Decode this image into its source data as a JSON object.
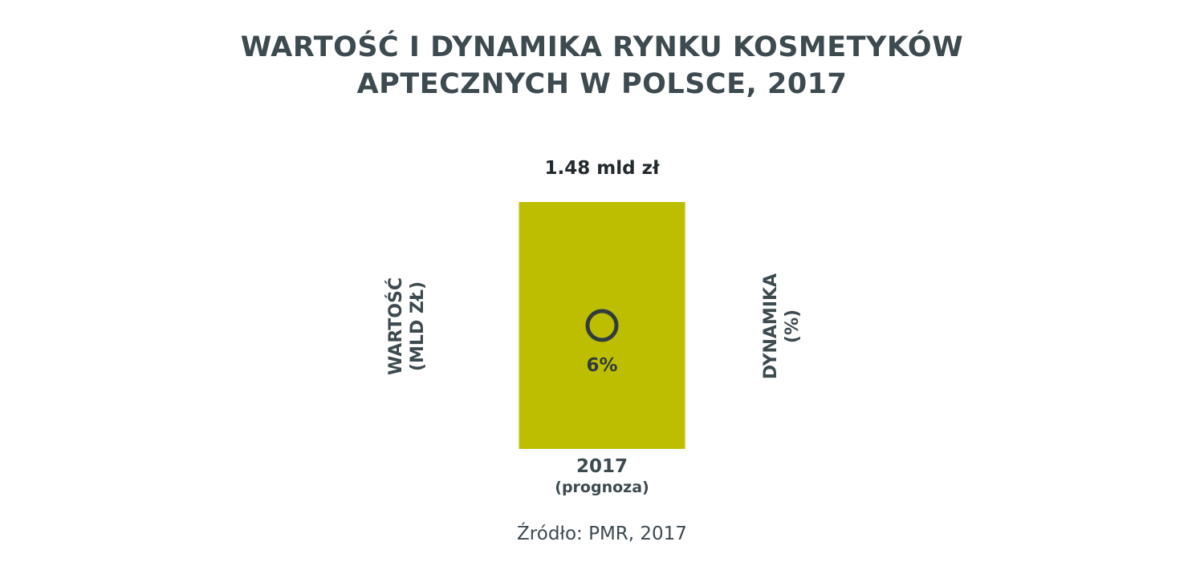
{
  "chart_data": {
    "type": "bar",
    "title": [
      "WARTOŚĆ I DYNAMIKA RYNKU KOSMETYKÓW",
      "APTECZNYCH W POLSCE, 2017"
    ],
    "categories": [
      {
        "label": "2017",
        "sublabel": "(prognoza)"
      }
    ],
    "series": [
      {
        "name": "WARTOŚĆ (MLD ZŁ)",
        "type": "bar",
        "values": [
          1.48
        ],
        "value_labels": [
          "1.48 mld zł"
        ],
        "color": "#bdbe00"
      },
      {
        "name": "DYNAMIKA (%)",
        "type": "marker",
        "values": [
          6
        ],
        "value_labels": [
          "6%"
        ],
        "color": "#2f3b41"
      }
    ],
    "ylabel_left": [
      "WARTOŚĆ",
      "(MLD ZŁ)"
    ],
    "ylabel_right": [
      "DYNAMIKA",
      "(%)"
    ],
    "ylim_left": [
      0,
      1.48
    ],
    "ylim_right": [
      0,
      12
    ],
    "grid": false,
    "legend": "none"
  },
  "source": "Źródło: PMR, 2017",
  "colors": {
    "text": "#3d4a50",
    "bar": "#bdbe00",
    "marker": "#2f3b41",
    "value_label": "#222a2e"
  }
}
